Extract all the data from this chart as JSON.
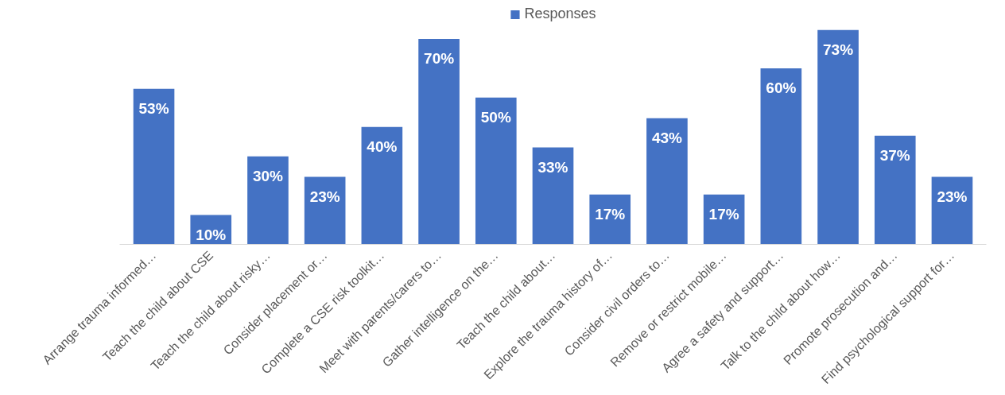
{
  "chart_data": {
    "type": "bar",
    "categories": [
      "Arrange trauma informed…",
      "Teach the child about CSE",
      "Teach the child about risky…",
      "Consider placement or…",
      "Complete a CSE risk toolkit…",
      "Meet with parents/carers to…",
      "Gather intelligence on the…",
      "Teach the child about…",
      "Explore the trauma history of…",
      "Consider civil orders to…",
      "Remove or restrict mobile…",
      "Agree a safety and support…",
      "Talk to the child about how…",
      "Promote prosecution and…",
      "Find psychological support for…"
    ],
    "series": [
      {
        "name": "Responses",
        "color": "#4472c4",
        "values": [
          53,
          10,
          30,
          23,
          40,
          70,
          50,
          33,
          17,
          43,
          17,
          60,
          73,
          37,
          23
        ],
        "value_labels": [
          "53%",
          "10%",
          "30%",
          "23%",
          "40%",
          "70%",
          "50%",
          "33%",
          "17%",
          "43%",
          "17%",
          "60%",
          "73%",
          "37%",
          "23%"
        ]
      }
    ],
    "legend": "top",
    "grid": false
  }
}
